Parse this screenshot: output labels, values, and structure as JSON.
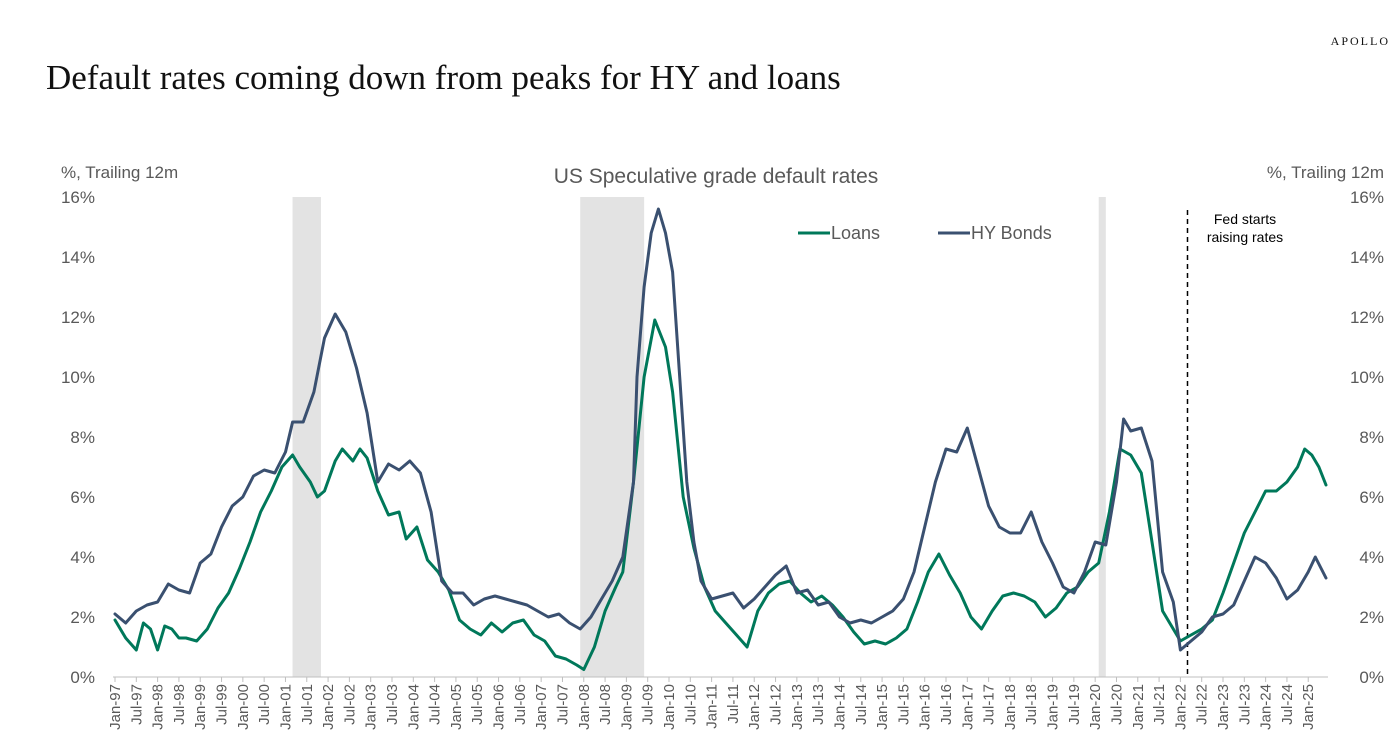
{
  "header": {
    "brand": "APOLLO",
    "title": "Default rates coming down from peaks for HY and loans"
  },
  "colors": {
    "loans": "#00785A",
    "hy_bonds": "#3A5070",
    "recession": "#E3E3E3",
    "axis_text": "#595959"
  },
  "chart_data": {
    "type": "line",
    "title": "US Speculative grade default rates",
    "ylabel_left": "%, Trailing 12m",
    "ylabel_right": "%, Trailing 12m",
    "ylim": [
      0,
      16
    ],
    "y_ticks": [
      "0%",
      "2%",
      "4%",
      "6%",
      "8%",
      "10%",
      "12%",
      "14%",
      "16%"
    ],
    "y_tick_values": [
      0,
      2,
      4,
      6,
      8,
      10,
      12,
      14,
      16
    ],
    "x_range": [
      "1997-01",
      "2025-06"
    ],
    "x_ticks": [
      "Jan-97",
      "Jul-97",
      "Jan-98",
      "Jul-98",
      "Jan-99",
      "Jul-99",
      "Jan-00",
      "Jul-00",
      "Jan-01",
      "Jul-01",
      "Jan-02",
      "Jul-02",
      "Jan-03",
      "Jul-03",
      "Jan-04",
      "Jul-04",
      "Jan-05",
      "Jul-05",
      "Jan-06",
      "Jul-06",
      "Jan-07",
      "Jul-07",
      "Jan-08",
      "Jul-08",
      "Jan-09",
      "Jul-09",
      "Jan-10",
      "Jul-10",
      "Jan-11",
      "Jul-11",
      "Jan-12",
      "Jul-12",
      "Jan-13",
      "Jul-13",
      "Jan-14",
      "Jul-14",
      "Jan-15",
      "Jul-15",
      "Jan-16",
      "Jul-16",
      "Jan-17",
      "Jul-17",
      "Jan-18",
      "Jul-18",
      "Jan-19",
      "Jul-19",
      "Jan-20",
      "Jul-20",
      "Jan-21",
      "Jul-21",
      "Jan-22",
      "Jul-22",
      "Jan-23",
      "Jul-23",
      "Jan-24",
      "Jul-24",
      "Jan-25"
    ],
    "grid": false,
    "legend_position": "top-center",
    "recessions": [
      {
        "start": "2001-03",
        "end": "2001-11"
      },
      {
        "start": "2007-12",
        "end": "2009-06"
      },
      {
        "start": "2020-02",
        "end": "2020-04"
      }
    ],
    "annotation": {
      "date": "2022-03",
      "lines": [
        "Fed starts",
        "raising rates"
      ]
    },
    "series": [
      {
        "name": "Loans",
        "points": [
          [
            "1997-01",
            1.9
          ],
          [
            "1997-04",
            1.3
          ],
          [
            "1997-07",
            0.9
          ],
          [
            "1997-09",
            1.8
          ],
          [
            "1997-11",
            1.6
          ],
          [
            "1998-01",
            0.9
          ],
          [
            "1998-03",
            1.7
          ],
          [
            "1998-05",
            1.6
          ],
          [
            "1998-07",
            1.3
          ],
          [
            "1998-09",
            1.3
          ],
          [
            "1998-12",
            1.2
          ],
          [
            "1999-03",
            1.6
          ],
          [
            "1999-06",
            2.3
          ],
          [
            "1999-09",
            2.8
          ],
          [
            "1999-12",
            3.6
          ],
          [
            "2000-03",
            4.5
          ],
          [
            "2000-06",
            5.5
          ],
          [
            "2000-09",
            6.2
          ],
          [
            "2000-12",
            7.0
          ],
          [
            "2001-03",
            7.4
          ],
          [
            "2001-05",
            7.0
          ],
          [
            "2001-08",
            6.5
          ],
          [
            "2001-10",
            6.0
          ],
          [
            "2001-12",
            6.2
          ],
          [
            "2002-03",
            7.2
          ],
          [
            "2002-05",
            7.6
          ],
          [
            "2002-08",
            7.2
          ],
          [
            "2002-10",
            7.6
          ],
          [
            "2002-12",
            7.3
          ],
          [
            "2003-03",
            6.2
          ],
          [
            "2003-06",
            5.4
          ],
          [
            "2003-09",
            5.5
          ],
          [
            "2003-11",
            4.6
          ],
          [
            "2004-02",
            5.0
          ],
          [
            "2004-05",
            3.9
          ],
          [
            "2004-08",
            3.5
          ],
          [
            "2004-11",
            2.9
          ],
          [
            "2005-02",
            1.9
          ],
          [
            "2005-05",
            1.6
          ],
          [
            "2005-08",
            1.4
          ],
          [
            "2005-11",
            1.8
          ],
          [
            "2006-02",
            1.5
          ],
          [
            "2006-05",
            1.8
          ],
          [
            "2006-08",
            1.9
          ],
          [
            "2006-11",
            1.4
          ],
          [
            "2007-02",
            1.2
          ],
          [
            "2007-05",
            0.7
          ],
          [
            "2007-08",
            0.6
          ],
          [
            "2007-11",
            0.4
          ],
          [
            "2008-01",
            0.25
          ],
          [
            "2008-04",
            1.0
          ],
          [
            "2008-07",
            2.2
          ],
          [
            "2008-10",
            3.0
          ],
          [
            "2008-12",
            3.5
          ],
          [
            "2009-03",
            6.5
          ],
          [
            "2009-06",
            10.0
          ],
          [
            "2009-09",
            11.9
          ],
          [
            "2009-12",
            11.0
          ],
          [
            "2010-02",
            9.5
          ],
          [
            "2010-05",
            6.0
          ],
          [
            "2010-08",
            4.3
          ],
          [
            "2010-11",
            3.0
          ],
          [
            "2011-02",
            2.2
          ],
          [
            "2011-05",
            1.8
          ],
          [
            "2011-08",
            1.4
          ],
          [
            "2011-11",
            1.0
          ],
          [
            "2012-02",
            2.2
          ],
          [
            "2012-05",
            2.8
          ],
          [
            "2012-08",
            3.1
          ],
          [
            "2012-11",
            3.2
          ],
          [
            "2013-02",
            2.8
          ],
          [
            "2013-05",
            2.5
          ],
          [
            "2013-08",
            2.7
          ],
          [
            "2013-11",
            2.4
          ],
          [
            "2014-02",
            2.0
          ],
          [
            "2014-05",
            1.5
          ],
          [
            "2014-08",
            1.1
          ],
          [
            "2014-11",
            1.2
          ],
          [
            "2015-02",
            1.1
          ],
          [
            "2015-05",
            1.3
          ],
          [
            "2015-08",
            1.6
          ],
          [
            "2015-11",
            2.5
          ],
          [
            "2016-02",
            3.5
          ],
          [
            "2016-05",
            4.1
          ],
          [
            "2016-08",
            3.4
          ],
          [
            "2016-11",
            2.8
          ],
          [
            "2017-02",
            2.0
          ],
          [
            "2017-05",
            1.6
          ],
          [
            "2017-08",
            2.2
          ],
          [
            "2017-11",
            2.7
          ],
          [
            "2018-02",
            2.8
          ],
          [
            "2018-05",
            2.7
          ],
          [
            "2018-08",
            2.5
          ],
          [
            "2018-11",
            2.0
          ],
          [
            "2019-02",
            2.3
          ],
          [
            "2019-05",
            2.8
          ],
          [
            "2019-08",
            3.0
          ],
          [
            "2019-11",
            3.5
          ],
          [
            "2020-02",
            3.8
          ],
          [
            "2020-05",
            5.5
          ],
          [
            "2020-08",
            7.6
          ],
          [
            "2020-11",
            7.4
          ],
          [
            "2021-02",
            6.8
          ],
          [
            "2021-05",
            4.5
          ],
          [
            "2021-08",
            2.2
          ],
          [
            "2021-11",
            1.6
          ],
          [
            "2022-01",
            1.2
          ],
          [
            "2022-04",
            1.4
          ],
          [
            "2022-07",
            1.6
          ],
          [
            "2022-10",
            1.9
          ],
          [
            "2023-01",
            2.8
          ],
          [
            "2023-04",
            3.8
          ],
          [
            "2023-07",
            4.8
          ],
          [
            "2023-10",
            5.5
          ],
          [
            "2024-01",
            6.2
          ],
          [
            "2024-04",
            6.2
          ],
          [
            "2024-07",
            6.5
          ],
          [
            "2024-10",
            7.0
          ],
          [
            "2024-12",
            7.6
          ],
          [
            "2025-02",
            7.4
          ],
          [
            "2025-04",
            7.0
          ],
          [
            "2025-06",
            6.4
          ]
        ]
      },
      {
        "name": "HY Bonds",
        "points": [
          [
            "1997-01",
            2.1
          ],
          [
            "1997-04",
            1.8
          ],
          [
            "1997-07",
            2.2
          ],
          [
            "1997-10",
            2.4
          ],
          [
            "1998-01",
            2.5
          ],
          [
            "1998-04",
            3.1
          ],
          [
            "1998-07",
            2.9
          ],
          [
            "1998-10",
            2.8
          ],
          [
            "1999-01",
            3.8
          ],
          [
            "1999-04",
            4.1
          ],
          [
            "1999-07",
            5.0
          ],
          [
            "1999-10",
            5.7
          ],
          [
            "2000-01",
            6.0
          ],
          [
            "2000-04",
            6.7
          ],
          [
            "2000-07",
            6.9
          ],
          [
            "2000-10",
            6.8
          ],
          [
            "2001-01",
            7.5
          ],
          [
            "2001-03",
            8.5
          ],
          [
            "2001-06",
            8.5
          ],
          [
            "2001-09",
            9.5
          ],
          [
            "2001-12",
            11.3
          ],
          [
            "2002-03",
            12.1
          ],
          [
            "2002-06",
            11.5
          ],
          [
            "2002-09",
            10.3
          ],
          [
            "2002-12",
            8.8
          ],
          [
            "2003-03",
            6.5
          ],
          [
            "2003-06",
            7.1
          ],
          [
            "2003-09",
            6.9
          ],
          [
            "2003-12",
            7.2
          ],
          [
            "2004-03",
            6.8
          ],
          [
            "2004-06",
            5.5
          ],
          [
            "2004-09",
            3.2
          ],
          [
            "2004-12",
            2.8
          ],
          [
            "2005-03",
            2.8
          ],
          [
            "2005-06",
            2.4
          ],
          [
            "2005-09",
            2.6
          ],
          [
            "2005-12",
            2.7
          ],
          [
            "2006-03",
            2.6
          ],
          [
            "2006-06",
            2.5
          ],
          [
            "2006-09",
            2.4
          ],
          [
            "2006-12",
            2.2
          ],
          [
            "2007-03",
            2.0
          ],
          [
            "2007-06",
            2.1
          ],
          [
            "2007-09",
            1.8
          ],
          [
            "2007-12",
            1.6
          ],
          [
            "2008-03",
            2.0
          ],
          [
            "2008-06",
            2.6
          ],
          [
            "2008-09",
            3.2
          ],
          [
            "2008-12",
            4.0
          ],
          [
            "2009-03",
            6.5
          ],
          [
            "2009-04",
            10.0
          ],
          [
            "2009-06",
            13.0
          ],
          [
            "2009-08",
            14.8
          ],
          [
            "2009-10",
            15.6
          ],
          [
            "2009-12",
            14.8
          ],
          [
            "2010-02",
            13.5
          ],
          [
            "2010-04",
            10.0
          ],
          [
            "2010-06",
            6.5
          ],
          [
            "2010-08",
            4.5
          ],
          [
            "2010-10",
            3.2
          ],
          [
            "2011-01",
            2.6
          ],
          [
            "2011-04",
            2.7
          ],
          [
            "2011-07",
            2.8
          ],
          [
            "2011-10",
            2.3
          ],
          [
            "2012-01",
            2.6
          ],
          [
            "2012-04",
            3.0
          ],
          [
            "2012-07",
            3.4
          ],
          [
            "2012-10",
            3.7
          ],
          [
            "2013-01",
            2.8
          ],
          [
            "2013-04",
            2.9
          ],
          [
            "2013-07",
            2.4
          ],
          [
            "2013-10",
            2.5
          ],
          [
            "2014-01",
            2.0
          ],
          [
            "2014-04",
            1.8
          ],
          [
            "2014-07",
            1.9
          ],
          [
            "2014-10",
            1.8
          ],
          [
            "2015-01",
            2.0
          ],
          [
            "2015-04",
            2.2
          ],
          [
            "2015-07",
            2.6
          ],
          [
            "2015-10",
            3.5
          ],
          [
            "2016-01",
            5.0
          ],
          [
            "2016-04",
            6.5
          ],
          [
            "2016-07",
            7.6
          ],
          [
            "2016-10",
            7.5
          ],
          [
            "2017-01",
            8.3
          ],
          [
            "2017-04",
            7.0
          ],
          [
            "2017-07",
            5.7
          ],
          [
            "2017-10",
            5.0
          ],
          [
            "2018-01",
            4.8
          ],
          [
            "2018-04",
            4.8
          ],
          [
            "2018-07",
            5.5
          ],
          [
            "2018-10",
            4.5
          ],
          [
            "2019-01",
            3.8
          ],
          [
            "2019-04",
            3.0
          ],
          [
            "2019-07",
            2.8
          ],
          [
            "2019-10",
            3.5
          ],
          [
            "2020-01",
            4.5
          ],
          [
            "2020-04",
            4.4
          ],
          [
            "2020-07",
            6.5
          ],
          [
            "2020-09",
            8.6
          ],
          [
            "2020-11",
            8.2
          ],
          [
            "2021-02",
            8.3
          ],
          [
            "2021-05",
            7.2
          ],
          [
            "2021-08",
            3.5
          ],
          [
            "2021-11",
            2.5
          ],
          [
            "2022-01",
            0.9
          ],
          [
            "2022-04",
            1.2
          ],
          [
            "2022-07",
            1.5
          ],
          [
            "2022-10",
            2.0
          ],
          [
            "2023-01",
            2.1
          ],
          [
            "2023-04",
            2.4
          ],
          [
            "2023-07",
            3.2
          ],
          [
            "2023-10",
            4.0
          ],
          [
            "2024-01",
            3.8
          ],
          [
            "2024-04",
            3.3
          ],
          [
            "2024-07",
            2.6
          ],
          [
            "2024-10",
            2.9
          ],
          [
            "2025-01",
            3.5
          ],
          [
            "2025-03",
            4.0
          ],
          [
            "2025-06",
            3.3
          ]
        ]
      }
    ]
  }
}
